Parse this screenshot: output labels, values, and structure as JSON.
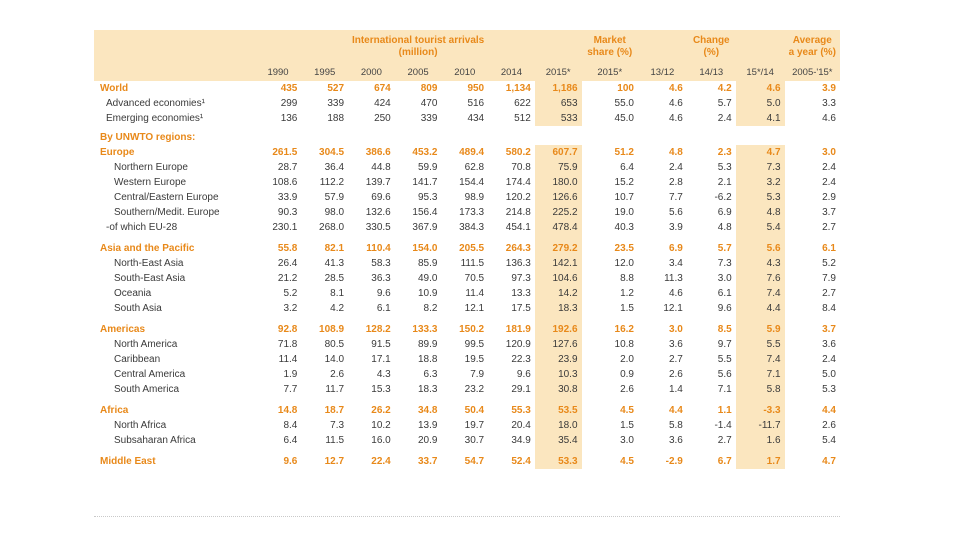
{
  "header": {
    "arrivals_title": "International tourist arrivals",
    "arrivals_unit": "(million)",
    "share_title": "Market",
    "share_unit": "share (%)",
    "change_title": "Change",
    "change_unit": "(%)",
    "avg_title": "Average",
    "avg_unit": "a year (%)",
    "years": [
      "1990",
      "1995",
      "2000",
      "2005",
      "2010",
      "2014",
      "2015*"
    ],
    "share_year": "2015*",
    "change_periods": [
      "13/12",
      "14/13",
      "15*/14"
    ],
    "avg_period": "2005-'15*"
  },
  "rows": [
    {
      "label": "World",
      "type": "major",
      "values": [
        "435",
        "527",
        "674",
        "809",
        "950",
        "1,134",
        "1,186",
        "100",
        "4.6",
        "4.2",
        "4.6",
        "3.9"
      ]
    },
    {
      "label": "Advanced economies¹",
      "type": "adv",
      "values": [
        "299",
        "339",
        "424",
        "470",
        "516",
        "622",
        "653",
        "55.0",
        "4.6",
        "5.7",
        "5.0",
        "3.3"
      ]
    },
    {
      "label": "Emerging economies¹",
      "type": "adv",
      "values": [
        "136",
        "188",
        "250",
        "339",
        "434",
        "512",
        "533",
        "45.0",
        "4.6",
        "2.4",
        "4.1",
        "4.6"
      ]
    },
    {
      "type": "section",
      "label": "By UNWTO regions:"
    },
    {
      "label": "Europe",
      "type": "major",
      "values": [
        "261.5",
        "304.5",
        "386.6",
        "453.2",
        "489.4",
        "580.2",
        "607.7",
        "51.2",
        "4.8",
        "2.3",
        "4.7",
        "3.0"
      ]
    },
    {
      "label": "Northern Europe",
      "type": "sub",
      "values": [
        "28.7",
        "36.4",
        "44.8",
        "59.9",
        "62.8",
        "70.8",
        "75.9",
        "6.4",
        "2.4",
        "5.3",
        "7.3",
        "2.4"
      ]
    },
    {
      "label": "Western Europe",
      "type": "sub",
      "values": [
        "108.6",
        "112.2",
        "139.7",
        "141.7",
        "154.4",
        "174.4",
        "180.0",
        "15.2",
        "2.8",
        "2.1",
        "3.2",
        "2.4"
      ]
    },
    {
      "label": "Central/Eastern Europe",
      "type": "sub",
      "values": [
        "33.9",
        "57.9",
        "69.6",
        "95.3",
        "98.9",
        "120.2",
        "126.6",
        "10.7",
        "7.7",
        "-6.2",
        "5.3",
        "2.9"
      ]
    },
    {
      "label": "Southern/Medit. Europe",
      "type": "sub",
      "values": [
        "90.3",
        "98.0",
        "132.6",
        "156.4",
        "173.3",
        "214.8",
        "225.2",
        "19.0",
        "5.6",
        "6.9",
        "4.8",
        "3.7"
      ]
    },
    {
      "label": "-of which EU-28",
      "type": "adv",
      "values": [
        "230.1",
        "268.0",
        "330.5",
        "367.9",
        "384.3",
        "454.1",
        "478.4",
        "40.3",
        "3.9",
        "4.8",
        "5.4",
        "2.7"
      ]
    },
    {
      "type": "gap"
    },
    {
      "label": "Asia and the Pacific",
      "type": "major",
      "values": [
        "55.8",
        "82.1",
        "110.4",
        "154.0",
        "205.5",
        "264.3",
        "279.2",
        "23.5",
        "6.9",
        "5.7",
        "5.6",
        "6.1"
      ]
    },
    {
      "label": "North-East Asia",
      "type": "sub",
      "values": [
        "26.4",
        "41.3",
        "58.3",
        "85.9",
        "111.5",
        "136.3",
        "142.1",
        "12.0",
        "3.4",
        "7.3",
        "4.3",
        "5.2"
      ]
    },
    {
      "label": "South-East Asia",
      "type": "sub",
      "values": [
        "21.2",
        "28.5",
        "36.3",
        "49.0",
        "70.5",
        "97.3",
        "104.6",
        "8.8",
        "11.3",
        "3.0",
        "7.6",
        "7.9"
      ]
    },
    {
      "label": "Oceania",
      "type": "sub",
      "values": [
        "5.2",
        "8.1",
        "9.6",
        "10.9",
        "11.4",
        "13.3",
        "14.2",
        "1.2",
        "4.6",
        "6.1",
        "7.4",
        "2.7"
      ]
    },
    {
      "label": "South Asia",
      "type": "sub",
      "values": [
        "3.2",
        "4.2",
        "6.1",
        "8.2",
        "12.1",
        "17.5",
        "18.3",
        "1.5",
        "12.1",
        "9.6",
        "4.4",
        "8.4"
      ]
    },
    {
      "type": "gap"
    },
    {
      "label": "Americas",
      "type": "major",
      "values": [
        "92.8",
        "108.9",
        "128.2",
        "133.3",
        "150.2",
        "181.9",
        "192.6",
        "16.2",
        "3.0",
        "8.5",
        "5.9",
        "3.7"
      ]
    },
    {
      "label": "North America",
      "type": "sub",
      "values": [
        "71.8",
        "80.5",
        "91.5",
        "89.9",
        "99.5",
        "120.9",
        "127.6",
        "10.8",
        "3.6",
        "9.7",
        "5.5",
        "3.6"
      ]
    },
    {
      "label": "Caribbean",
      "type": "sub",
      "values": [
        "11.4",
        "14.0",
        "17.1",
        "18.8",
        "19.5",
        "22.3",
        "23.9",
        "2.0",
        "2.7",
        "5.5",
        "7.4",
        "2.4"
      ]
    },
    {
      "label": "Central America",
      "type": "sub",
      "values": [
        "1.9",
        "2.6",
        "4.3",
        "6.3",
        "7.9",
        "9.6",
        "10.3",
        "0.9",
        "2.6",
        "5.6",
        "7.1",
        "5.0"
      ]
    },
    {
      "label": "South America",
      "type": "sub",
      "values": [
        "7.7",
        "11.7",
        "15.3",
        "18.3",
        "23.2",
        "29.1",
        "30.8",
        "2.6",
        "1.4",
        "7.1",
        "5.8",
        "5.3"
      ]
    },
    {
      "type": "gap"
    },
    {
      "label": "Africa",
      "type": "major",
      "values": [
        "14.8",
        "18.7",
        "26.2",
        "34.8",
        "50.4",
        "55.3",
        "53.5",
        "4.5",
        "4.4",
        "1.1",
        "-3.3",
        "4.4"
      ]
    },
    {
      "label": "North Africa",
      "type": "sub",
      "values": [
        "8.4",
        "7.3",
        "10.2",
        "13.9",
        "19.7",
        "20.4",
        "18.0",
        "1.5",
        "5.8",
        "-1.4",
        "-11.7",
        "2.6"
      ]
    },
    {
      "label": "Subsaharan Africa",
      "type": "sub",
      "values": [
        "6.4",
        "11.5",
        "16.0",
        "20.9",
        "30.7",
        "34.9",
        "35.4",
        "3.0",
        "3.6",
        "2.7",
        "1.6",
        "5.4"
      ]
    },
    {
      "type": "gap"
    },
    {
      "label": "Middle East",
      "type": "major",
      "values": [
        "9.6",
        "12.7",
        "22.4",
        "33.7",
        "54.7",
        "52.4",
        "53.3",
        "4.5",
        "-2.9",
        "6.7",
        "1.7",
        "4.7"
      ]
    }
  ]
}
